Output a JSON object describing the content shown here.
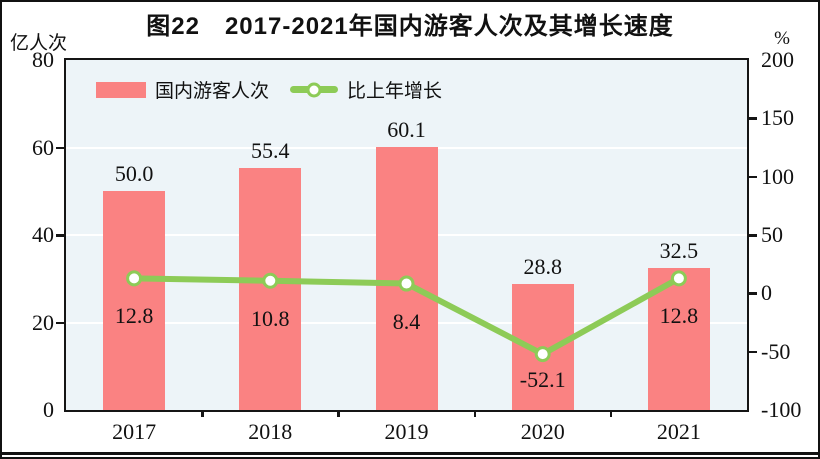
{
  "chart_data": {
    "type": "combo-bar-line",
    "title": "图22　2017-2021年国内游客人次及其增长速度",
    "categories": [
      "2017",
      "2018",
      "2019",
      "2020",
      "2021"
    ],
    "series": [
      {
        "name": "国内游客人次",
        "chart": "bar",
        "axis": "left",
        "values": [
          50.0,
          55.4,
          60.1,
          28.8,
          32.5
        ],
        "color": "#FA8282"
      },
      {
        "name": "比上年增长",
        "chart": "line",
        "axis": "right",
        "values": [
          12.8,
          10.8,
          8.4,
          -52.1,
          12.8
        ],
        "color": "#8DCB57",
        "marker": "open-circle"
      }
    ],
    "left_axis": {
      "label": "亿人次",
      "range": [
        0,
        80
      ],
      "ticks": [
        0,
        20,
        40,
        60,
        80
      ]
    },
    "right_axis": {
      "label": "%",
      "range": [
        -100,
        200
      ],
      "ticks": [
        -100,
        -50,
        0,
        50,
        100,
        150,
        200
      ]
    },
    "gridlines": {
      "show": true,
      "color": "#ffffff",
      "at_left_values": [
        20,
        40,
        60
      ]
    },
    "plot_background": "#EDF4F8",
    "legend_position": "inside-top-left"
  }
}
